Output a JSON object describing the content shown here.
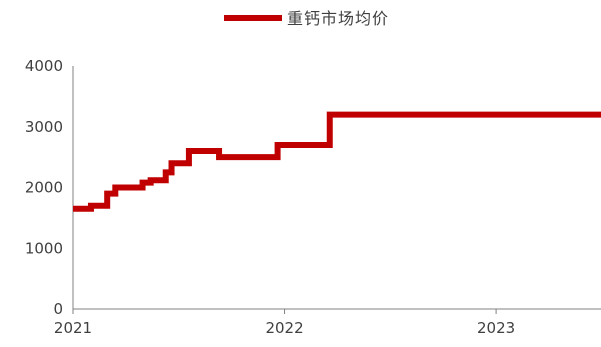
{
  "chart_data": {
    "type": "line",
    "title": "",
    "xlabel": "",
    "ylabel": "",
    "ylim": [
      0,
      4000
    ],
    "yticks": [
      0,
      1000,
      2000,
      3000,
      4000
    ],
    "xticks": [
      "2021-01-01",
      "2022-01-01",
      "2023-01-01"
    ],
    "xtick_labels": [
      "2021",
      "2022",
      "2023"
    ],
    "xlim": [
      "2021-01-01",
      "2023-07-01"
    ],
    "grid": false,
    "legend": "top-center",
    "line_shape": "step",
    "series": [
      {
        "name": "重钙市场均价",
        "color": "#c00000",
        "points": [
          [
            "2021-01-01",
            1650
          ],
          [
            "2021-02-01",
            1700
          ],
          [
            "2021-03-01",
            1900
          ],
          [
            "2021-03-15",
            2000
          ],
          [
            "2021-05-01",
            2080
          ],
          [
            "2021-05-15",
            2120
          ],
          [
            "2021-06-10",
            2250
          ],
          [
            "2021-06-20",
            2400
          ],
          [
            "2021-07-20",
            2600
          ],
          [
            "2021-09-10",
            2500
          ],
          [
            "2021-12-20",
            2700
          ],
          [
            "2022-03-20",
            3200
          ],
          [
            "2023-07-01",
            3200
          ]
        ]
      }
    ]
  }
}
